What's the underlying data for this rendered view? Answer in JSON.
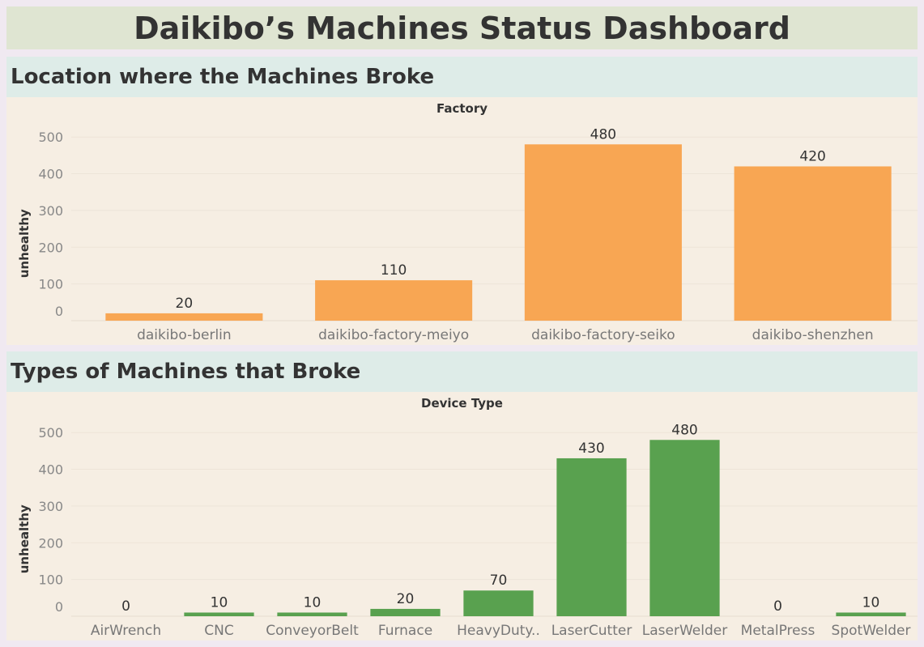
{
  "dashboard": {
    "title": "Daikibo’s Machines Status Dashboard"
  },
  "sections": [
    {
      "header": "Location where the Machines Broke"
    },
    {
      "header": "Types of Machines that Broke"
    }
  ],
  "colors": {
    "factory_bar": "#f8a653",
    "device_bar": "#59a14f"
  },
  "chart_data": [
    {
      "type": "bar",
      "title": "Factory",
      "ylabel": "unhealthy",
      "ylim": [
        0,
        550
      ],
      "yticks": [
        0,
        100,
        200,
        300,
        400,
        500
      ],
      "grid": true,
      "categories": [
        "daikibo-berlin",
        "daikibo-factory-meiyo",
        "daikibo-factory-seiko",
        "daikibo-shenzhen"
      ],
      "values": [
        20,
        110,
        480,
        420
      ]
    },
    {
      "type": "bar",
      "title": "Device Type",
      "ylabel": "unhealthy",
      "ylim": [
        0,
        550
      ],
      "yticks": [
        0,
        100,
        200,
        300,
        400,
        500
      ],
      "grid": true,
      "categories": [
        "AirWrench",
        "CNC",
        "ConveyorBelt",
        "Furnace",
        "HeavyDuty..",
        "LaserCutter",
        "LaserWelder",
        "MetalPress",
        "SpotWelder"
      ],
      "values": [
        0,
        10,
        10,
        20,
        70,
        430,
        480,
        0,
        10
      ]
    }
  ]
}
